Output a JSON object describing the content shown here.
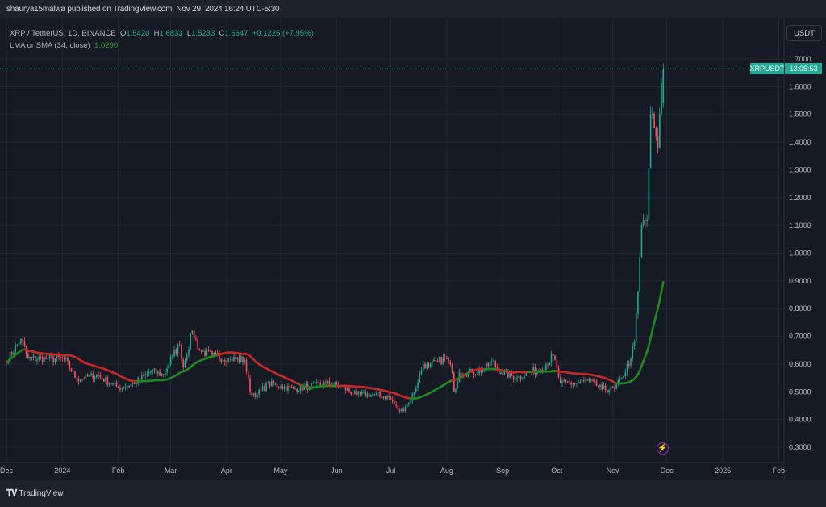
{
  "header": {
    "published": "shaurya15malwa published on TradingView.com, Nov 29, 2024 16:24 UTC-5:30"
  },
  "legend": {
    "symbol": "XRP / TetherUS, 1D, BINANCE",
    "o_label": "O",
    "o": "1.5420",
    "h_label": "H",
    "h": "1.6833",
    "l_label": "L",
    "l": "1.5233",
    "c_label": "C",
    "c": "1.6647",
    "change": "+0.1226 (+7.95%)",
    "ma_label": "LMA or SMA (34, close)",
    "ma_value": "1.0290"
  },
  "price_axis": {
    "currency": "USDT",
    "symbol_tag": "XRPUSDT",
    "countdown": "13:05:53"
  },
  "footer": {
    "brand": "TradingView",
    "logo": "TV"
  },
  "colors": {
    "up": "#22ab94",
    "down": "#f7525f",
    "ma_up": "#1f8a1f",
    "ma_down": "#c62828",
    "background": "#161a25"
  },
  "icons": {
    "event": "lightning-icon"
  },
  "chart_data": {
    "type": "candlestick",
    "title": "XRP / TetherUS, 1D, BINANCE",
    "interval": "1D",
    "ylim": [
      0.25,
      1.76
    ],
    "y_ticks": [
      "1.7000",
      "1.6000",
      "1.5000",
      "1.4000",
      "1.3000",
      "1.2000",
      "1.1000",
      "1.0000",
      "0.9000",
      "0.8000",
      "0.7000",
      "0.6000",
      "0.5000",
      "0.4000",
      "0.3000"
    ],
    "x_range": [
      "2023-11-28",
      "2025-02-04"
    ],
    "x_ticks": [
      {
        "label": "Dec",
        "date": "2023-12-01"
      },
      {
        "label": "2024",
        "date": "2024-01-01"
      },
      {
        "label": "Feb",
        "date": "2024-02-01"
      },
      {
        "label": "Mar",
        "date": "2024-03-01"
      },
      {
        "label": "Apr",
        "date": "2024-04-01"
      },
      {
        "label": "May",
        "date": "2024-05-01"
      },
      {
        "label": "Jun",
        "date": "2024-06-01"
      },
      {
        "label": "Jul",
        "date": "2024-07-01"
      },
      {
        "label": "Aug",
        "date": "2024-08-01"
      },
      {
        "label": "Sep",
        "date": "2024-09-01"
      },
      {
        "label": "Oct",
        "date": "2024-10-01"
      },
      {
        "label": "Nov",
        "date": "2024-11-01"
      },
      {
        "label": "Dec",
        "date": "2024-12-01"
      },
      {
        "label": "2025",
        "date": "2025-01-01"
      },
      {
        "label": "Feb",
        "date": "2025-02-01"
      }
    ],
    "last_price": 1.6647,
    "sma_period": 34,
    "close_path": [
      [
        "2023-12-01",
        0.61
      ],
      [
        "2023-12-09",
        0.69
      ],
      [
        "2023-12-13",
        0.62
      ],
      [
        "2023-12-24",
        0.62
      ],
      [
        "2024-01-02",
        0.62
      ],
      [
        "2024-01-09",
        0.545
      ],
      [
        "2024-01-20",
        0.56
      ],
      [
        "2024-02-01",
        0.515
      ],
      [
        "2024-02-10",
        0.53
      ],
      [
        "2024-02-19",
        0.575
      ],
      [
        "2024-02-26",
        0.56
      ],
      [
        "2024-03-02",
        0.63
      ],
      [
        "2024-03-06",
        0.67
      ],
      [
        "2024-03-08",
        0.59
      ],
      [
        "2024-03-13",
        0.72
      ],
      [
        "2024-03-17",
        0.65
      ],
      [
        "2024-03-24",
        0.63
      ],
      [
        "2024-04-02",
        0.62
      ],
      [
        "2024-04-11",
        0.615
      ],
      [
        "2024-04-14",
        0.5
      ],
      [
        "2024-04-18",
        0.49
      ],
      [
        "2024-04-24",
        0.53
      ],
      [
        "2024-05-01",
        0.52
      ],
      [
        "2024-05-08",
        0.51
      ],
      [
        "2024-05-17",
        0.52
      ],
      [
        "2024-05-26",
        0.53
      ],
      [
        "2024-06-03",
        0.52
      ],
      [
        "2024-06-12",
        0.49
      ],
      [
        "2024-06-21",
        0.49
      ],
      [
        "2024-06-30",
        0.48
      ],
      [
        "2024-07-06",
        0.43
      ],
      [
        "2024-07-11",
        0.46
      ],
      [
        "2024-07-14",
        0.5
      ],
      [
        "2024-07-19",
        0.6
      ],
      [
        "2024-07-22",
        0.59
      ],
      [
        "2024-07-27",
        0.61
      ],
      [
        "2024-08-01",
        0.62
      ],
      [
        "2024-08-04",
        0.57
      ],
      [
        "2024-08-05",
        0.5
      ],
      [
        "2024-08-08",
        0.57
      ],
      [
        "2024-08-15",
        0.57
      ],
      [
        "2024-08-22",
        0.58
      ],
      [
        "2024-08-26",
        0.61
      ],
      [
        "2024-08-31",
        0.57
      ],
      [
        "2024-09-09",
        0.55
      ],
      [
        "2024-09-15",
        0.57
      ],
      [
        "2024-09-22",
        0.58
      ],
      [
        "2024-09-29",
        0.63
      ],
      [
        "2024-10-03",
        0.53
      ],
      [
        "2024-10-10",
        0.53
      ],
      [
        "2024-10-19",
        0.54
      ],
      [
        "2024-10-26",
        0.51
      ],
      [
        "2024-11-02",
        0.51
      ],
      [
        "2024-11-06",
        0.55
      ],
      [
        "2024-11-11",
        0.62
      ],
      [
        "2024-11-13",
        0.68
      ],
      [
        "2024-11-15",
        0.86
      ],
      [
        "2024-11-17",
        1.1
      ],
      [
        "2024-11-20",
        1.12
      ],
      [
        "2024-11-22",
        1.5
      ],
      [
        "2024-11-24",
        1.45
      ],
      [
        "2024-11-26",
        1.38
      ],
      [
        "2024-11-27",
        1.5
      ],
      [
        "2024-11-29",
        1.6647
      ]
    ]
  }
}
